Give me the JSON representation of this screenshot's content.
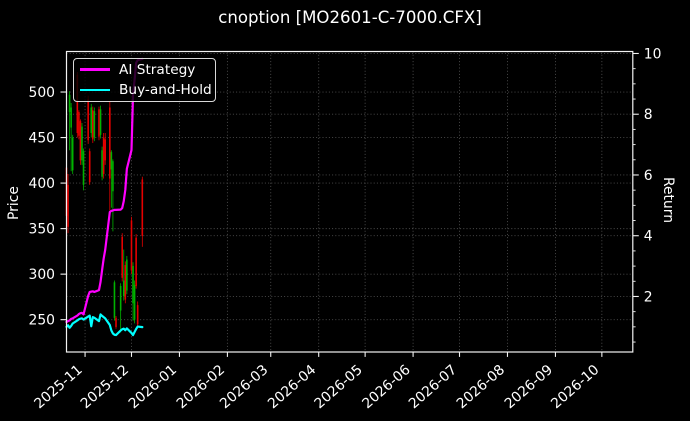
{
  "title": "cnoption [MO2601-C-7000.CFX]",
  "axes": {
    "left_label": "Price",
    "right_label": "Return",
    "left_ticks": [
      250,
      300,
      350,
      400,
      450,
      500
    ],
    "right_ticks": [
      2,
      4,
      6,
      8,
      10
    ],
    "right_minor_step": 0.5,
    "x_tick_labels": [
      "2025-11",
      "2025-12",
      "2026-01",
      "2026-02",
      "2026-03",
      "2026-04",
      "2026-05",
      "2026-06",
      "2026-07",
      "2026-08",
      "2026-09",
      "2026-10"
    ],
    "x_tick_dates": [
      "2025-11-01",
      "2025-12-01",
      "2026-01-01",
      "2026-02-01",
      "2026-03-01",
      "2026-04-01",
      "2026-05-01",
      "2026-06-01",
      "2026-07-01",
      "2026-08-01",
      "2026-09-01",
      "2026-10-01"
    ]
  },
  "legend": {
    "entries": [
      {
        "label": "AI Strategy",
        "color": "#ff00ff"
      },
      {
        "label": "Buy-and-Hold",
        "color": "#00ffff"
      }
    ]
  },
  "colors": {
    "background": "#000000",
    "text": "#ffffff",
    "spine": "#f2f2f2",
    "grid": "#5a5a5a",
    "candle_up": "#00b300",
    "candle_down": "#e60000",
    "ai_strategy": "#ff00ff",
    "buy_and_hold": "#00ffff"
  },
  "chart_data": {
    "type": "candlestick+line",
    "title": "cnoption [MO2601-C-7000.CFX]",
    "xlabel": "",
    "ylabel_left": "Price",
    "ylabel_right": "Return",
    "price_range": [
      214.5,
      544.5
    ],
    "return_range": [
      0.172,
      10.065
    ],
    "x_range": [
      "2025-10-20",
      "2026-10-21"
    ],
    "legend_position": "upper left",
    "grid": "dotted",
    "columns": [
      "date",
      "open",
      "high",
      "low",
      "close",
      "ai_strategy_return",
      "buy_and_hold_return"
    ],
    "rows": [
      [
        "2025-10-20",
        417,
        427,
        346,
        364,
        1.16,
        1.0
      ],
      [
        "2025-10-21",
        398,
        410,
        345,
        352,
        1.19,
        1.05
      ],
      [
        "2025-10-22",
        478,
        501,
        436,
        497,
        1.21,
        0.97
      ],
      [
        "2025-10-23",
        461,
        488,
        413,
        483,
        1.26,
        1.03
      ],
      [
        "2025-10-24",
        414,
        453,
        410,
        450,
        1.28,
        1.11
      ],
      [
        "2025-10-27",
        519,
        522,
        450,
        455,
        1.37,
        1.21
      ],
      [
        "2025-10-28",
        478,
        480,
        448,
        452,
        1.42,
        1.25
      ],
      [
        "2025-10-29",
        468,
        470,
        420,
        425,
        1.45,
        1.27
      ],
      [
        "2025-10-30",
        425,
        466,
        420,
        462,
        1.46,
        1.28
      ],
      [
        "2025-10-31",
        398,
        438,
        392,
        435,
        1.41,
        1.24
      ],
      [
        "2025-11-03",
        492,
        496,
        443,
        447,
        2.02,
        1.34
      ],
      [
        "2025-11-04",
        435,
        438,
        398,
        401,
        2.15,
        1.37
      ],
      [
        "2025-11-05",
        455,
        487,
        450,
        483,
        2.16,
        1.02
      ],
      [
        "2025-11-06",
        480,
        484,
        444,
        448,
        2.17,
        1.32
      ],
      [
        "2025-11-07",
        450,
        483,
        446,
        479,
        2.15,
        1.3
      ],
      [
        "2025-11-10",
        481,
        484,
        447,
        451,
        2.21,
        1.19
      ],
      [
        "2025-11-11",
        453,
        485,
        449,
        481,
        2.48,
        1.41
      ],
      [
        "2025-11-12",
        407,
        440,
        403,
        436,
        2.87,
        1.36
      ],
      [
        "2025-11-13",
        450,
        455,
        405,
        410,
        3.24,
        1.32
      ],
      [
        "2025-11-14",
        448,
        455,
        420,
        425,
        3.53,
        1.28
      ],
      [
        "2025-11-17",
        483,
        490,
        370,
        405,
        4.78,
        1.06
      ],
      [
        "2025-11-18",
        415,
        436,
        373,
        434,
        4.82,
        0.88
      ],
      [
        "2025-11-19",
        391,
        426,
        347,
        424,
        4.83,
        0.78
      ],
      [
        "2025-11-20",
        252,
        293,
        249,
        291,
        4.85,
        0.74
      ],
      [
        "2025-11-21",
        252,
        254,
        240,
        242,
        4.85,
        0.73
      ],
      [
        "2025-11-24",
        260,
        290,
        236,
        287,
        4.86,
        0.88
      ],
      [
        "2025-11-25",
        341,
        345,
        292,
        296,
        4.91,
        0.92
      ],
      [
        "2025-11-26",
        276,
        327,
        271,
        293,
        5.14,
        0.94
      ],
      [
        "2025-11-27",
        310,
        314,
        268,
        272,
        5.51,
        0.89
      ],
      [
        "2025-11-28",
        282,
        320,
        278,
        316,
        6.2,
        0.95
      ],
      [
        "2025-12-01",
        359,
        363,
        300,
        304,
        6.82,
        0.8
      ],
      [
        "2025-12-02",
        268,
        313,
        249,
        309,
        8.63,
        0.73
      ],
      [
        "2025-12-03",
        250,
        293,
        246,
        288,
        9.13,
        0.83
      ],
      [
        "2025-12-04",
        340,
        344,
        284,
        287,
        9.69,
        0.93
      ],
      [
        "2025-12-05",
        266,
        270,
        242,
        245,
        9.78,
        1.01
      ],
      [
        "2025-12-08",
        404,
        407,
        330,
        342,
        9.82,
        0.99
      ]
    ],
    "series": [
      {
        "name": "AI Strategy",
        "axis": "return",
        "color": "#ff00ff",
        "value_column": "ai_strategy_return"
      },
      {
        "name": "Buy-and-Hold",
        "axis": "return",
        "color": "#00ffff",
        "value_column": "buy_and_hold_return"
      }
    ]
  }
}
